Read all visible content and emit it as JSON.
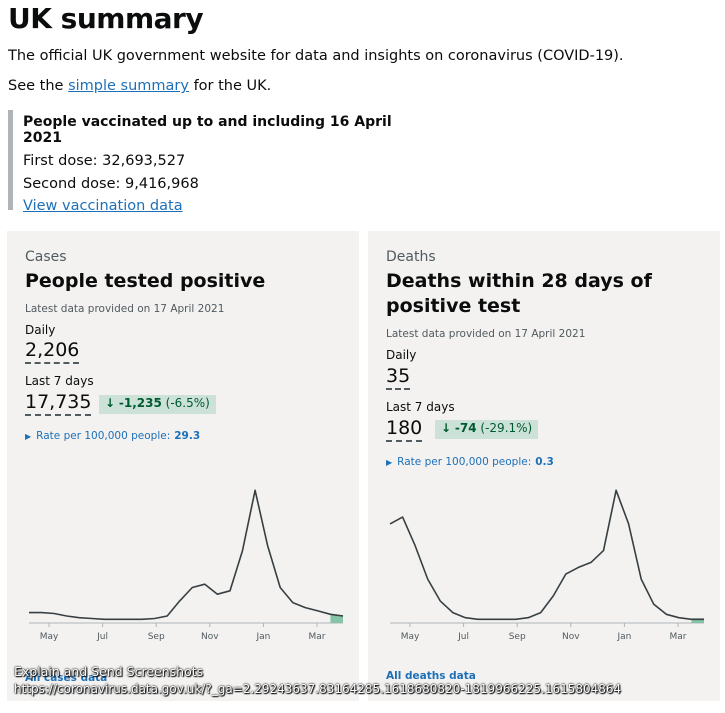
{
  "page": {
    "title": "UK summary",
    "intro": "The official UK government website for data and insights on coronavirus (COVID-19).",
    "see_prefix": "See the",
    "see_link": "simple summary",
    "see_suffix": "for the UK."
  },
  "vaccination": {
    "title": "People vaccinated up to and including 16 April 2021",
    "first_dose": "First dose: 32,693,527",
    "second_dose": "Second dose: 9,416,968",
    "link": "View vaccination data"
  },
  "cases": {
    "category": "Cases",
    "heading": "People tested positive",
    "latest": "Latest data provided on 17 April 2021",
    "daily_label": "Daily",
    "daily_value": "2,206",
    "week_label": "Last 7 days",
    "week_value": "17,735",
    "change_arrow": "↓",
    "change_value": "-1,235",
    "change_pct": "(-6.5%)",
    "rate_label": "Rate per 100,000 people:",
    "rate_value": "29.3",
    "link": "All cases data"
  },
  "deaths": {
    "category": "Deaths",
    "heading": "Deaths within 28 days of positive test",
    "latest": "Latest data provided on 17 April 2021",
    "daily_label": "Daily",
    "daily_value": "35",
    "week_label": "Last 7 days",
    "week_value": "180",
    "change_arrow": "↓",
    "change_value": "-74",
    "change_pct": "(-29.1%)",
    "rate_label": "Rate per 100,000 people:",
    "rate_value": "0.3",
    "link": "All deaths data"
  },
  "overlay": {
    "line1": "Explain and Send Screenshots",
    "line2": "https://coronavirus.data.gov.uk/?_ga=2.29243637.83164285.1618680820-1819966225.1615804864"
  },
  "colors": {
    "link": "#1d70b8",
    "card_bg": "#f3f2f1",
    "change_bg": "#cce2d8",
    "change_text": "#005a30",
    "line": "#383f43",
    "highlight": "#85c4a6"
  },
  "chart_data": [
    {
      "type": "line",
      "x_ticks": [
        "May",
        "Jul",
        "Sep",
        "Nov",
        "Jan",
        "Mar"
      ],
      "x": [
        0,
        1,
        2,
        3,
        4,
        5,
        6,
        7,
        8,
        9,
        10,
        11,
        12,
        13,
        14,
        15,
        16,
        17,
        18,
        19,
        20,
        21,
        22,
        23,
        24,
        25
      ],
      "values": [
        5,
        5,
        4.5,
        3,
        2,
        1.5,
        1,
        1,
        1,
        1,
        1.5,
        3,
        12,
        20,
        22,
        16,
        18,
        42,
        78,
        45,
        20,
        11,
        8,
        6,
        4,
        3
      ],
      "ylim": [
        0,
        80
      ],
      "grid": false
    },
    {
      "type": "line",
      "x_ticks": [
        "May",
        "Jul",
        "Sep",
        "Nov",
        "Jan",
        "Mar"
      ],
      "x": [
        0,
        1,
        2,
        3,
        4,
        5,
        6,
        7,
        8,
        9,
        10,
        11,
        12,
        13,
        14,
        15,
        16,
        17,
        18,
        19,
        20,
        21,
        22,
        23,
        24,
        25
      ],
      "values": [
        58,
        62,
        45,
        25,
        12,
        5,
        2,
        1,
        1,
        1,
        1,
        2,
        5,
        15,
        28,
        32,
        35,
        42,
        78,
        58,
        25,
        10,
        4,
        2,
        1,
        1
      ],
      "ylim": [
        0,
        80
      ],
      "grid": false
    }
  ]
}
